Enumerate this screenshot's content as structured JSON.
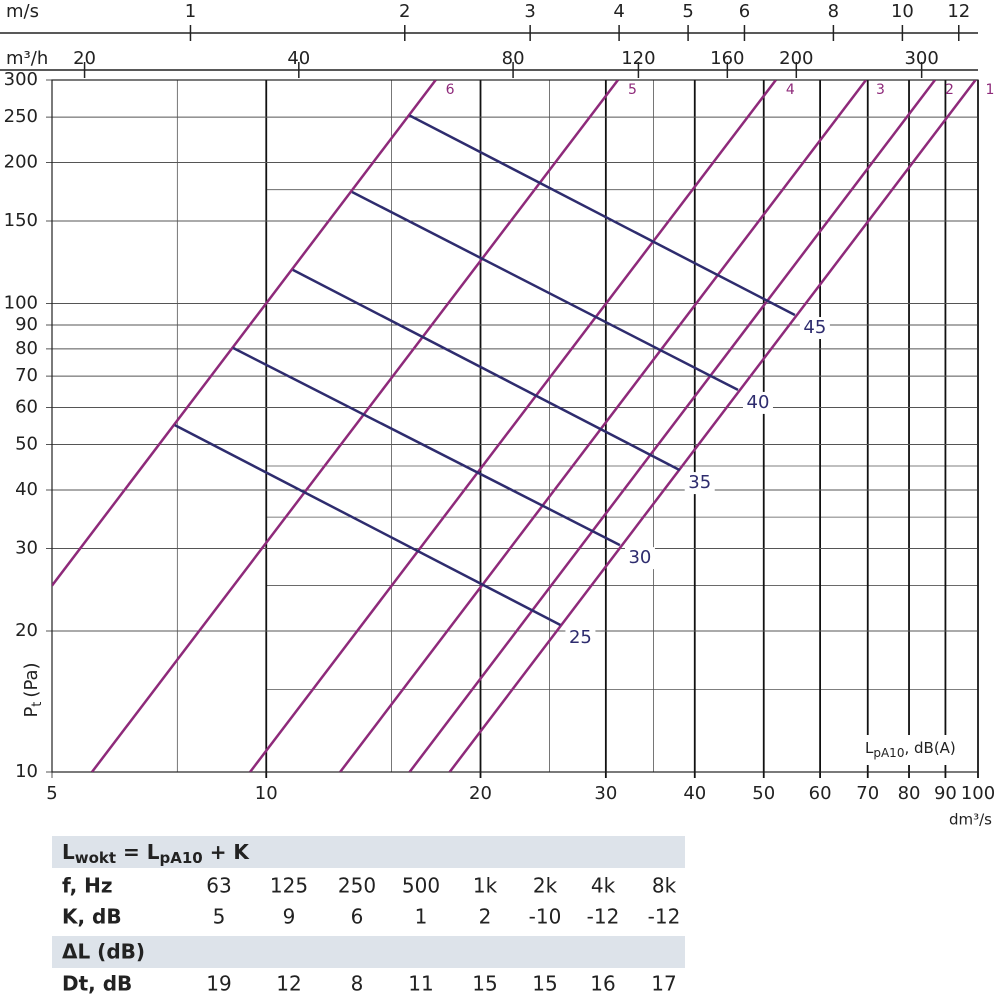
{
  "chart_data": {
    "type": "line",
    "log_x": true,
    "log_y": true,
    "grid": true,
    "xlabel": "dm³/s",
    "ylabel": "P",
    "ylabel_sub": "t",
    "ylabel_unit": "(Pa)",
    "xlim": [
      5,
      100
    ],
    "ylim": [
      10,
      300
    ],
    "xticks": [
      5,
      10,
      20,
      30,
      40,
      50,
      60,
      70,
      80,
      90,
      100
    ],
    "yticks": [
      10,
      20,
      30,
      40,
      50,
      60,
      70,
      80,
      90,
      100,
      150,
      200,
      250,
      300
    ],
    "x_minor_grid": [
      7.5,
      15,
      25,
      35
    ],
    "y_minor_grid": [
      15,
      25,
      35,
      45,
      175
    ],
    "top_axes": [
      {
        "label": "m/s",
        "lim": [
          0.639,
          12.77
        ],
        "ticks": [
          1,
          2,
          3,
          4,
          5,
          6,
          8,
          10,
          12
        ]
      },
      {
        "label": "m³/h",
        "lim": [
          18,
          360
        ],
        "ticks": [
          20,
          40,
          80,
          120,
          160,
          200,
          300
        ]
      }
    ],
    "series": [
      {
        "name": "1",
        "color": "#8e2a7a",
        "x": [
          18.1,
          99.2
        ],
        "values": [
          10,
          300
        ]
      },
      {
        "name": "2",
        "color": "#8e2a7a",
        "x": [
          15.9,
          87
        ],
        "values": [
          10,
          300
        ]
      },
      {
        "name": "3",
        "color": "#8e2a7a",
        "x": [
          12.7,
          69.6
        ],
        "values": [
          10,
          300
        ]
      },
      {
        "name": "4",
        "color": "#8e2a7a",
        "x": [
          9.49,
          52
        ],
        "values": [
          10,
          300
        ]
      },
      {
        "name": "5",
        "color": "#8e2a7a",
        "x": [
          5.69,
          31.2
        ],
        "values": [
          10,
          300
        ]
      },
      {
        "name": "6",
        "color": "#8e2a7a",
        "x": [
          5,
          17.3
        ],
        "values": [
          25,
          300
        ]
      }
    ],
    "noise_series": [
      {
        "name": "25",
        "color": "#2e2c6e",
        "x": [
          7.44,
          25.9
        ],
        "values": [
          55,
          20.6
        ]
      },
      {
        "name": "30",
        "color": "#2e2c6e",
        "x": [
          8.98,
          31.4
        ],
        "values": [
          80.4,
          30.5
        ]
      },
      {
        "name": "35",
        "color": "#2e2c6e",
        "x": [
          10.9,
          38.1
        ],
        "values": [
          118,
          44.1
        ]
      },
      {
        "name": "40",
        "color": "#2e2c6e",
        "x": [
          13.2,
          46
        ],
        "values": [
          173,
          65.4
        ]
      },
      {
        "name": "45",
        "color": "#2e2c6e",
        "x": [
          15.9,
          55.3
        ],
        "values": [
          252,
          94.5
        ]
      }
    ],
    "annotation": {
      "main": "L",
      "sub": "pA10",
      "rest": ", dB(A)"
    }
  },
  "table": {
    "formula": [
      "L",
      "wokt",
      " = L",
      "pA10",
      " + K"
    ],
    "rows": [
      [
        "f, Hz",
        "63",
        "125",
        "250",
        "500",
        "1k",
        "2k",
        "4k",
        "8k"
      ],
      [
        "K, dB",
        5,
        9,
        6,
        1,
        2,
        -10,
        -12,
        -12
      ]
    ],
    "section2": "ΔL (dB)",
    "rows2": [
      [
        "Dt, dB",
        19,
        12,
        8,
        11,
        15,
        15,
        16,
        17
      ]
    ]
  }
}
